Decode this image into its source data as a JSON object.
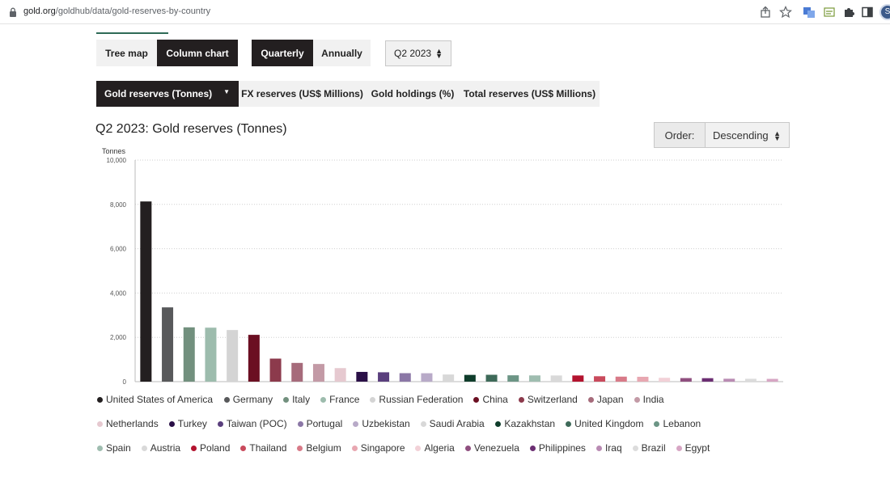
{
  "browser": {
    "url_domain": "gold.org",
    "url_path": "/goldhub/data/gold-reserves-by-country",
    "profile_initial": "S"
  },
  "view_toggle": {
    "tree_map": "Tree map",
    "column_chart": "Column chart",
    "active": "Column chart"
  },
  "period_toggle": {
    "quarterly": "Quarterly",
    "annually": "Annually",
    "active": "Quarterly"
  },
  "period_select": {
    "value": "Q2 2023"
  },
  "metric_tabs": {
    "active": "Gold reserves (Tonnes)",
    "items": [
      "FX reserves (US$ Millions)",
      "Gold holdings (%)",
      "Total reserves (US$ Millions)"
    ]
  },
  "order": {
    "label": "Order:",
    "value": "Descending"
  },
  "chart_data": {
    "type": "bar",
    "title": "Q2 2023: Gold reserves (Tonnes)",
    "ylabel": "Tonnes",
    "xlabel": "",
    "ylim": [
      0,
      10000
    ],
    "yticks": [
      "0",
      "2,000",
      "4,000",
      "6,000",
      "8,000",
      "10,000"
    ],
    "ytick_values": [
      0,
      2000,
      4000,
      6000,
      8000,
      10000
    ],
    "grid": true,
    "legend_position": "bottom",
    "categories": [
      "United States of America",
      "Germany",
      "Italy",
      "France",
      "Russian Federation",
      "China",
      "Switzerland",
      "Japan",
      "India",
      "Netherlands",
      "Turkey",
      "Taiwan (POC)",
      "Portugal",
      "Uzbekistan",
      "Saudi Arabia",
      "Kazakhstan",
      "United Kingdom",
      "Lebanon",
      "Spain",
      "Austria",
      "Poland",
      "Thailand",
      "Belgium",
      "Singapore",
      "Algeria",
      "Venezuela",
      "Philippines",
      "Iraq",
      "Brazil",
      "Egypt"
    ],
    "values": [
      8133,
      3353,
      2452,
      2437,
      2330,
      2113,
      1040,
      846,
      798,
      612,
      440,
      423,
      383,
      380,
      323,
      305,
      310,
      287,
      282,
      280,
      279,
      244,
      227,
      220,
      174,
      161,
      157,
      132,
      130,
      126
    ],
    "colors": [
      "#231f20",
      "#58595b",
      "#72907e",
      "#9dbcad",
      "#d4d4d4",
      "#6b0f22",
      "#8c3a4c",
      "#a66b7b",
      "#c39aa6",
      "#e6c9d0",
      "#2a0f47",
      "#5a3f7d",
      "#8b77a6",
      "#b8aac8",
      "#d8d8d8",
      "#0f3d2b",
      "#3e6a59",
      "#6c9585",
      "#9fbdb0",
      "#d9d9d9",
      "#b3122e",
      "#c94a5c",
      "#d87a88",
      "#e8a7b1",
      "#f2d1d7",
      "#8f4f7f",
      "#6b2e72",
      "#b98bb3",
      "#dcdcdc",
      "#d7a6c4"
    ]
  }
}
